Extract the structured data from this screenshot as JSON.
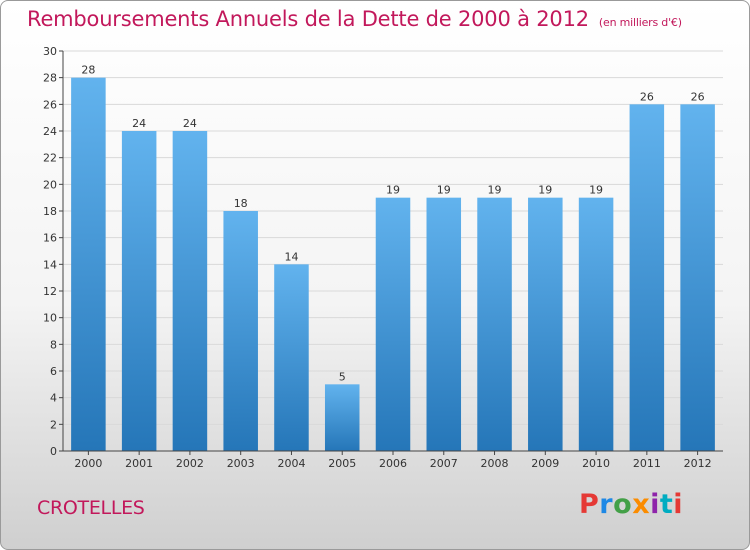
{
  "header": {
    "title": "Remboursements Annuels de la Dette de 2000 à 2012",
    "subtitle": "(en milliers d'€)"
  },
  "footer": {
    "place": "CROTELLES",
    "logo": "Proxiti",
    "logo_colors": [
      "#e53935",
      "#1e88e5",
      "#43a047",
      "#fb8c00",
      "#8e24aa",
      "#00acc1",
      "#e53935"
    ]
  },
  "colors": {
    "bar_top": "#62b3ee",
    "bar_bottom": "#2576b8",
    "grid": "#d9d9d9",
    "axis": "#444444"
  },
  "chart_data": {
    "type": "bar",
    "title": "Remboursements Annuels de la Dette de 2000 à 2012",
    "subtitle": "(en milliers d'€)",
    "categories": [
      "2000",
      "2001",
      "2002",
      "2003",
      "2004",
      "2005",
      "2006",
      "2007",
      "2008",
      "2009",
      "2010",
      "2011",
      "2012"
    ],
    "values": [
      28,
      24,
      24,
      18,
      14,
      5,
      19,
      19,
      19,
      19,
      19,
      26,
      26
    ],
    "ylim": [
      0,
      30
    ],
    "yticks": [
      0,
      2,
      4,
      6,
      8,
      10,
      12,
      14,
      16,
      18,
      20,
      22,
      24,
      26,
      28,
      30
    ],
    "grid": true,
    "xlabel": "",
    "ylabel": ""
  }
}
